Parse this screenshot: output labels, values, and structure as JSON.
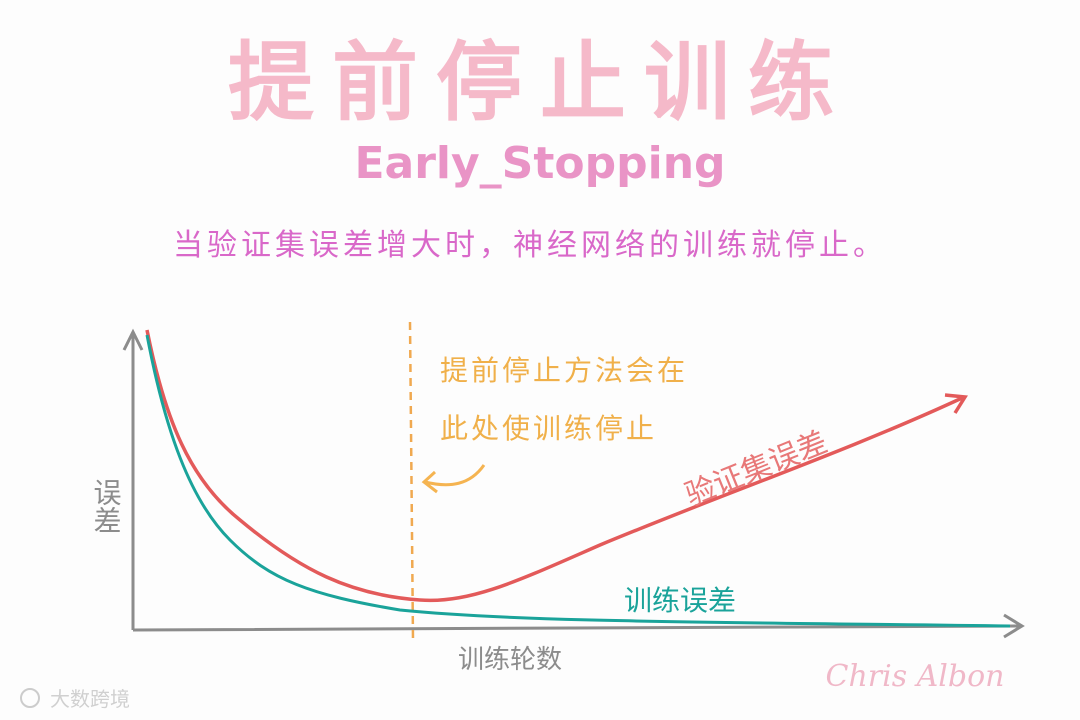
{
  "header": {
    "title": "提前停止训练",
    "subtitle": "Early_Stopping",
    "description": "当验证集误差增大时，神经网络的训练就停止。"
  },
  "diagram": {
    "annotation": [
      "提前停止方法会在",
      "此处使训练停止"
    ],
    "validation_label": "验证集误差",
    "training_label": "训练误差",
    "y_label": "误差",
    "x_label": "训练轮数"
  },
  "footer": {
    "signature": "Chris Albon",
    "watermark": "大数跨境"
  }
}
